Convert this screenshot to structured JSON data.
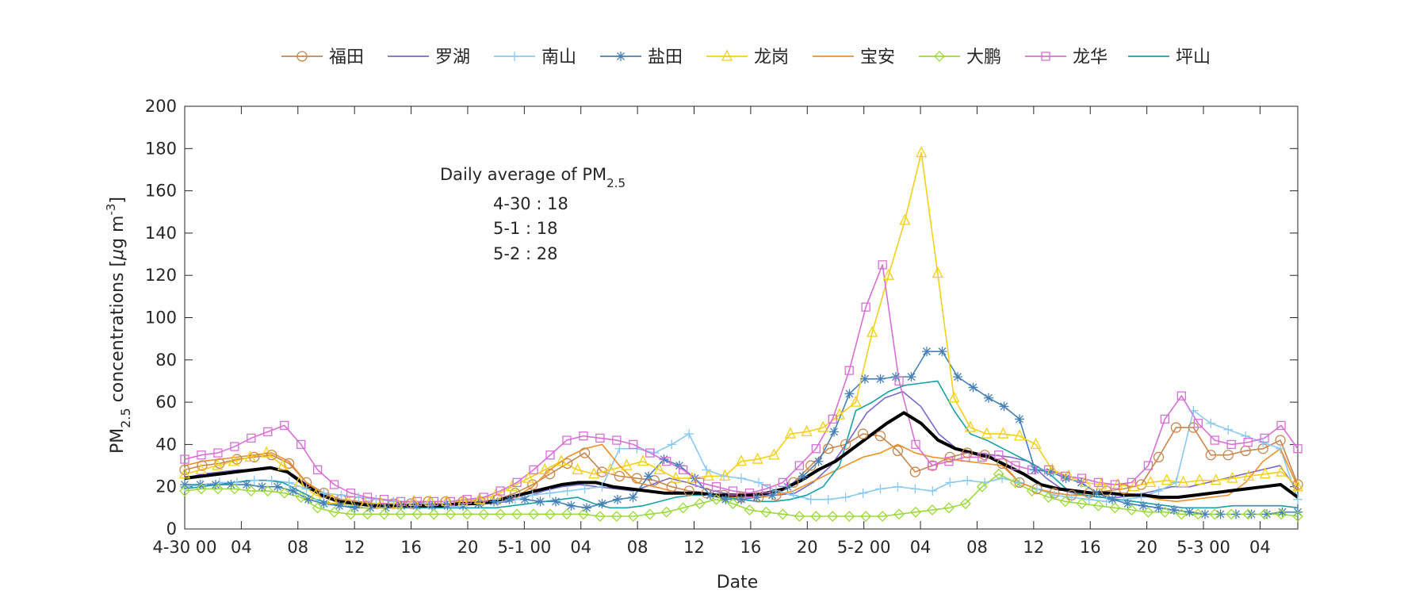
{
  "chart_data": {
    "type": "line",
    "xlabel": "Date",
    "ylabel_main": "PM",
    "ylabel_sub": "2.5",
    "ylabel_rest": " concentrations [",
    "ylabel_unit_mu": "μ",
    "ylabel_unit_rest": "g m",
    "ylabel_unit_sup": "-3",
    "ylabel_close": "]",
    "ylim": [
      0,
      200
    ],
    "xlim": [
      0,
      59
    ],
    "yticks": [
      0,
      20,
      40,
      60,
      80,
      100,
      120,
      140,
      160,
      180,
      200
    ],
    "xticks": [
      {
        "x": 0,
        "label": "4-30 00"
      },
      {
        "x": 3,
        "label": "04"
      },
      {
        "x": 6,
        "label": "08"
      },
      {
        "x": 9,
        "label": "12"
      },
      {
        "x": 12,
        "label": "16"
      },
      {
        "x": 15,
        "label": "20"
      },
      {
        "x": 18,
        "label": "5-1 00"
      },
      {
        "x": 21,
        "label": "04"
      },
      {
        "x": 24,
        "label": "08"
      },
      {
        "x": 27,
        "label": "12"
      },
      {
        "x": 30,
        "label": "16"
      },
      {
        "x": 33,
        "label": "20"
      },
      {
        "x": 36,
        "label": "5-2 00"
      },
      {
        "x": 39,
        "label": "04"
      },
      {
        "x": 42,
        "label": "08"
      },
      {
        "x": 45,
        "label": "12"
      },
      {
        "x": 48,
        "label": "16"
      },
      {
        "x": 51,
        "label": "20"
      },
      {
        "x": 54,
        "label": "5-3 00"
      },
      {
        "x": 57,
        "label": "04"
      }
    ],
    "grid": false,
    "legend_position": "top",
    "annotation": {
      "title_main": "Daily average of PM",
      "title_sub": "2.5",
      "lines": [
        "4-30 : 18",
        "5-1 : 18",
        "5-2 : 28"
      ]
    },
    "series": [
      {
        "name": "福田",
        "color": "#c8864e",
        "marker": "circle",
        "values": [
          28,
          30,
          31,
          33,
          34,
          35,
          31,
          22,
          17,
          14,
          13,
          12,
          12,
          12,
          13,
          13,
          13,
          13,
          14,
          17,
          21,
          26,
          31,
          36,
          27,
          25,
          24,
          23,
          20,
          18,
          17,
          16,
          15,
          15,
          16,
          22,
          30,
          38,
          40,
          45,
          44,
          37,
          27,
          30,
          34,
          36,
          35,
          31,
          22,
          19,
          17,
          16,
          17,
          18,
          19,
          21,
          34,
          48,
          48,
          35,
          35,
          37,
          38,
          42,
          21
        ]
      },
      {
        "name": "罗湖",
        "color": "#7b67c9",
        "marker": "none",
        "values": [
          24,
          26,
          27,
          28,
          28,
          29,
          26,
          20,
          15,
          13,
          12,
          11,
          11,
          11,
          12,
          12,
          12,
          12,
          13,
          15,
          18,
          20,
          21,
          20,
          19,
          18,
          21,
          24,
          22,
          19,
          17,
          16,
          16,
          16,
          17,
          22,
          30,
          42,
          55,
          62,
          65,
          58,
          45,
          38,
          36,
          35,
          34,
          32,
          24,
          18,
          16,
          15,
          15,
          16,
          18,
          20,
          20,
          22,
          24,
          26,
          28,
          30,
          18
        ]
      },
      {
        "name": "南山",
        "color": "#89c9f4",
        "marker": "plus",
        "values": [
          20,
          21,
          22,
          22,
          23,
          23,
          22,
          19,
          17,
          16,
          15,
          14,
          13,
          12,
          12,
          12,
          12,
          12,
          13,
          14,
          16,
          17,
          18,
          19,
          20,
          38,
          38,
          36,
          40,
          45,
          28,
          25,
          24,
          22,
          18,
          16,
          14,
          14,
          15,
          17,
          19,
          20,
          19,
          18,
          22,
          23,
          22,
          24,
          22,
          19,
          16,
          15,
          14,
          13,
          14,
          15,
          18,
          22,
          56,
          50,
          47,
          44,
          41,
          38,
          14
        ]
      },
      {
        "name": "盐田",
        "color": "#4680b8",
        "marker": "star",
        "values": [
          21,
          21,
          21,
          21,
          21,
          20,
          20,
          18,
          14,
          12,
          11,
          10,
          10,
          10,
          11,
          11,
          11,
          11,
          11,
          12,
          13,
          14,
          14,
          13,
          13,
          11,
          10,
          12,
          14,
          15,
          25,
          33,
          30,
          24,
          16,
          14,
          14,
          15,
          16,
          20,
          25,
          32,
          46,
          64,
          71,
          71,
          72,
          72,
          84,
          84,
          72,
          67,
          62,
          58,
          52,
          28,
          27,
          24,
          22,
          17,
          14,
          12,
          11,
          10,
          9,
          8,
          7,
          7,
          7,
          7,
          7,
          8,
          8
        ]
      },
      {
        "name": "龙岗",
        "color": "#f5cf19",
        "marker": "triangle",
        "values": [
          26,
          28,
          30,
          32,
          34,
          36,
          30,
          22,
          16,
          14,
          13,
          12,
          12,
          12,
          13,
          13,
          13,
          13,
          14,
          16,
          20,
          24,
          28,
          32,
          28,
          26,
          28,
          30,
          32,
          28,
          24,
          24,
          25,
          25,
          32,
          33,
          35,
          45,
          46,
          48,
          54,
          60,
          93,
          120,
          146,
          178,
          121,
          62,
          48,
          45,
          45,
          44,
          40,
          28,
          25,
          22,
          21,
          21,
          20,
          22,
          23,
          22,
          23,
          23,
          24,
          25,
          26,
          27,
          20
        ]
      },
      {
        "name": "宝安",
        "color": "#f08f25",
        "marker": "none",
        "values": [
          30,
          32,
          33,
          34,
          35,
          36,
          32,
          22,
          16,
          13,
          12,
          11,
          11,
          11,
          12,
          12,
          12,
          12,
          13,
          15,
          20,
          28,
          34,
          38,
          40,
          30,
          22,
          20,
          18,
          17,
          16,
          15,
          15,
          15,
          16,
          18,
          22,
          26,
          30,
          34,
          36,
          40,
          36,
          34,
          33,
          32,
          31,
          30,
          22,
          19,
          17,
          16,
          16,
          17,
          17,
          16,
          14,
          13,
          14,
          15,
          16,
          22,
          32,
          38,
          20
        ]
      },
      {
        "name": "大鹏",
        "color": "#9cd93b",
        "marker": "diamond",
        "values": [
          18,
          19,
          19,
          19,
          18,
          18,
          17,
          15,
          10,
          8,
          7,
          7,
          7,
          7,
          7,
          7,
          7,
          7,
          7,
          7,
          7,
          7,
          7,
          7,
          7,
          6,
          6,
          6,
          7,
          8,
          10,
          12,
          14,
          12,
          9,
          8,
          7,
          6,
          6,
          6,
          6,
          6,
          6,
          7,
          8,
          9,
          10,
          12,
          20,
          26,
          22,
          18,
          15,
          13,
          12,
          11,
          10,
          9,
          8,
          8,
          7,
          7,
          7,
          7,
          7,
          7,
          7,
          6
        ]
      },
      {
        "name": "龙华",
        "color": "#d86fd6",
        "marker": "square",
        "values": [
          33,
          35,
          36,
          39,
          43,
          46,
          49,
          40,
          28,
          21,
          17,
          15,
          14,
          13,
          13,
          13,
          13,
          14,
          15,
          18,
          22,
          28,
          35,
          42,
          44,
          43,
          42,
          40,
          36,
          32,
          28,
          22,
          20,
          18,
          17,
          19,
          22,
          30,
          38,
          52,
          75,
          105,
          125,
          70,
          40,
          30,
          32,
          34,
          34,
          35,
          30,
          28,
          28,
          25,
          24,
          22,
          21,
          22,
          30,
          52,
          63,
          50,
          42,
          40,
          41,
          43,
          49,
          38
        ]
      },
      {
        "name": "坪山",
        "color": "#18a0a8",
        "marker": "none",
        "values": [
          19,
          20,
          21,
          22,
          23,
          23,
          22,
          18,
          14,
          12,
          11,
          10,
          10,
          10,
          10,
          10,
          10,
          10,
          10,
          10,
          11,
          12,
          13,
          14,
          15,
          12,
          10,
          10,
          11,
          13,
          15,
          16,
          16,
          15,
          14,
          13,
          13,
          14,
          16,
          20,
          30,
          56,
          60,
          65,
          68,
          69,
          70,
          56,
          45,
          42,
          38,
          34,
          30,
          25,
          18,
          16,
          15,
          14,
          13,
          12,
          11,
          10,
          10,
          10,
          11,
          11,
          11,
          11,
          10
        ]
      }
    ],
    "mean_series": {
      "color": "#000000",
      "values": [
        24,
        25,
        26,
        27,
        28,
        29,
        27,
        21,
        16,
        13,
        12,
        11,
        11,
        11,
        11,
        11,
        12,
        12,
        13,
        15,
        17,
        19,
        21,
        22,
        22,
        20,
        19,
        18,
        17,
        17,
        17,
        16,
        16,
        16,
        17,
        19,
        23,
        28,
        32,
        38,
        44,
        50,
        55,
        50,
        42,
        38,
        36,
        34,
        30,
        26,
        21,
        19,
        18,
        17,
        17,
        16,
        16,
        15,
        15,
        16,
        17,
        18,
        19,
        20,
        21,
        15
      ]
    }
  }
}
